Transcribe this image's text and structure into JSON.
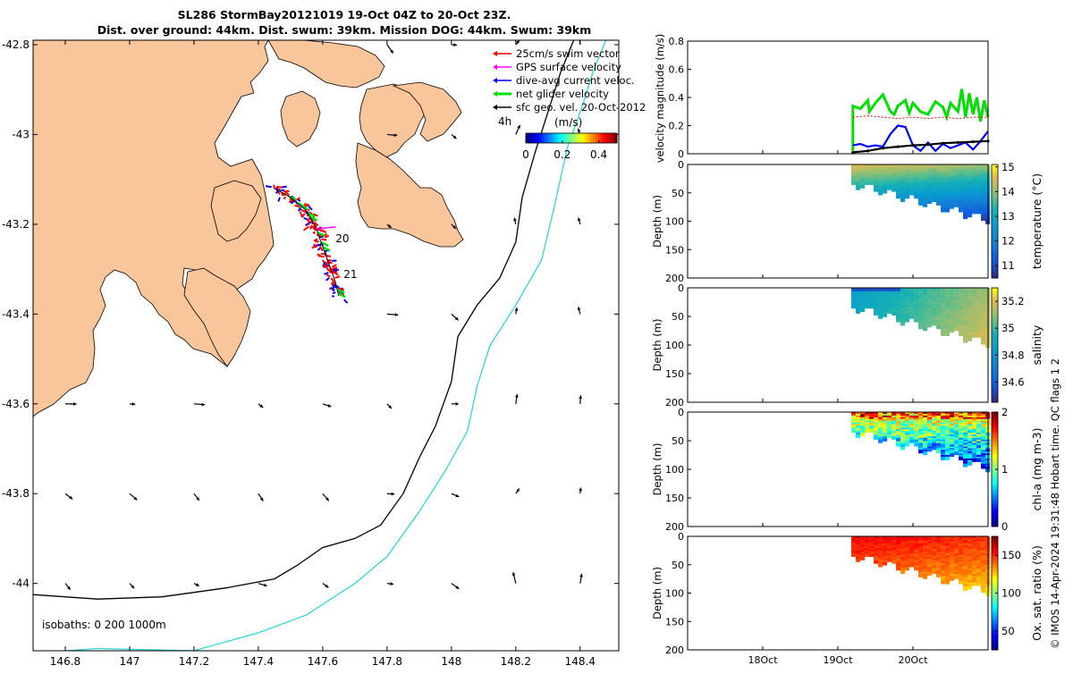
{
  "title": {
    "line1": "SL286 StormBay20121019 19-Oct 04Z to 20-Oct 23Z.",
    "line2": "Dist. over ground: 44km. Dist. swum: 39km. Mission DOG: 44km. Swum: 39km"
  },
  "colors": {
    "land": "#f9c59a",
    "isobath_200": "#000000",
    "isobath_1000": "#33d6d6",
    "swim": "#ff0000",
    "gps": "#ff00ff",
    "diveavg": "#0000ff",
    "net": "#00e000",
    "sfcgeo": "#000000"
  },
  "map": {
    "lon_ticks": [
      "146.8",
      "147",
      "147.2",
      "147.4",
      "147.6",
      "147.8",
      "148",
      "148.2",
      "148.4"
    ],
    "lat_ticks": [
      "-42.8",
      "-43",
      "-43.2",
      "-43.4",
      "-43.6",
      "-43.8",
      "-44"
    ],
    "lon_tick_values": [
      146.8,
      147,
      147.2,
      147.4,
      147.6,
      147.8,
      148,
      148.2,
      148.4
    ],
    "lat_tick_values": [
      -42.8,
      -43,
      -43.2,
      -43.4,
      -43.6,
      -43.8,
      -44
    ],
    "lon_range": [
      146.7,
      148.52
    ],
    "lat_range": [
      -44.15,
      -42.79
    ],
    "legend": [
      {
        "label": "25cm/s swim vector",
        "color_key": "swim"
      },
      {
        "label": "GPS surface velocity",
        "color_key": "gps"
      },
      {
        "label": "dive-avg current veloc.",
        "color_key": "diveavg"
      },
      {
        "label": "net glider velocity",
        "color_key": "net"
      },
      {
        "label": "sfc geo. vel. 20-Oct-2012",
        "color_key": "sfcgeo"
      }
    ],
    "colorbar": {
      "label": "(m/s)",
      "corner_label": "4h",
      "ticks": [
        "0",
        "0.2",
        "0.4"
      ],
      "tick_values": [
        0,
        0.2,
        0.4
      ],
      "range": [
        0,
        0.5
      ]
    },
    "isobaths_label": "isobaths: 0   200  1000m",
    "day_labels": [
      {
        "text": "20",
        "lon": 147.64,
        "lat": -43.24
      },
      {
        "text": "21",
        "lon": 147.665,
        "lat": -43.32
      }
    ]
  },
  "profiles": {
    "depth_ticks": [
      "0",
      "50",
      "100",
      "150",
      "200"
    ],
    "depth_tick_values": [
      0,
      50,
      100,
      150,
      200
    ],
    "depth_label": "Depth (m)",
    "time_ticks": [
      "18Oct",
      "19Oct",
      "20Oct"
    ],
    "time_tick_values": [
      18,
      19,
      20
    ],
    "time_range": [
      17,
      21
    ]
  },
  "chart_data": [
    {
      "type": "line",
      "title": "",
      "ylabel": "velocity magnitude (m/s)",
      "yticks": [
        "0",
        "0.2",
        "0.4",
        "0.6",
        "0.8"
      ],
      "ytick_values": [
        0,
        0.2,
        0.4,
        0.6,
        0.8
      ],
      "ylim": [
        0,
        0.8
      ],
      "xlim": [
        17,
        21
      ],
      "series": [
        {
          "name": "net glider velocity",
          "color_key": "net",
          "x": [
            19.2,
            19.2,
            19.3,
            19.4,
            19.42,
            19.5,
            19.6,
            19.7,
            19.75,
            19.8,
            19.9,
            19.95,
            20.0,
            20.1,
            20.2,
            20.3,
            20.4,
            20.45,
            20.5,
            20.6,
            20.65,
            20.7,
            20.75,
            20.8,
            20.85,
            20.9,
            20.95,
            21.0
          ],
          "y": [
            0.02,
            0.34,
            0.32,
            0.38,
            0.3,
            0.36,
            0.42,
            0.3,
            0.28,
            0.34,
            0.38,
            0.29,
            0.36,
            0.3,
            0.28,
            0.37,
            0.33,
            0.26,
            0.36,
            0.3,
            0.46,
            0.26,
            0.43,
            0.28,
            0.4,
            0.23,
            0.38,
            0.26
          ]
        },
        {
          "name": "dive-avg current veloc.",
          "color_key": "diveavg",
          "x": [
            19.2,
            19.3,
            19.4,
            19.5,
            19.6,
            19.7,
            19.8,
            19.9,
            20.0,
            20.1,
            20.2,
            20.3,
            20.4,
            20.5,
            20.6,
            20.7,
            20.8,
            20.9,
            21.0
          ],
          "y": [
            0.06,
            0.07,
            0.05,
            0.06,
            0.05,
            0.14,
            0.2,
            0.19,
            0.06,
            0.02,
            0.08,
            0.02,
            0.07,
            0.04,
            0.06,
            0.08,
            0.03,
            0.09,
            0.16
          ]
        },
        {
          "name": "swim",
          "color_key": "swim",
          "x": [
            19.2,
            19.4,
            19.6,
            19.8,
            20.0,
            20.2,
            20.4,
            20.6,
            20.8,
            21.0
          ],
          "y": [
            0.26,
            0.27,
            0.26,
            0.25,
            0.26,
            0.25,
            0.26,
            0.25,
            0.26,
            0.26
          ]
        },
        {
          "name": "sfc geo.",
          "color_key": "sfcgeo",
          "x": [
            19.2,
            19.4,
            19.6,
            19.8,
            20.0,
            20.2,
            20.4,
            20.6,
            20.8,
            21.0
          ],
          "y": [
            0.01,
            0.02,
            0.04,
            0.05,
            0.06,
            0.065,
            0.075,
            0.08,
            0.085,
            0.09
          ]
        }
      ]
    },
    {
      "type": "heatmap",
      "ylabel": "Depth (m)",
      "colorbar_label": "temperature (°C)",
      "colorbar_ticks": [
        "11",
        "12",
        "13",
        "14",
        "15"
      ],
      "colorbar_values": [
        11,
        12,
        13,
        14,
        15
      ],
      "range": [
        10.5,
        15.1
      ],
      "cmap": "parula"
    },
    {
      "type": "heatmap",
      "ylabel": "Depth (m)",
      "colorbar_label": "salinity",
      "colorbar_ticks": [
        "34.6",
        "34.8",
        "35",
        "35.2"
      ],
      "colorbar_values": [
        34.6,
        34.8,
        35,
        35.2
      ],
      "range": [
        34.45,
        35.3
      ],
      "cmap": "parula"
    },
    {
      "type": "heatmap",
      "ylabel": "Depth (m)",
      "colorbar_label": "chl-a (mg m-3)",
      "colorbar_ticks": [
        "0",
        "1",
        "2"
      ],
      "colorbar_values": [
        0,
        1,
        2
      ],
      "range": [
        0,
        2
      ],
      "cmap": "jet"
    },
    {
      "type": "heatmap",
      "ylabel": "Depth (m)",
      "colorbar_label": "Ox. sat. ratio (%)",
      "colorbar_ticks": [
        "50",
        "100",
        "150"
      ],
      "colorbar_values": [
        50,
        100,
        150
      ],
      "range": [
        25,
        175
      ],
      "cmap": "jet"
    }
  ],
  "footer": "© IMOS 14-Apr-2024 19:31:48 Hobart time. QC flags 1  2"
}
